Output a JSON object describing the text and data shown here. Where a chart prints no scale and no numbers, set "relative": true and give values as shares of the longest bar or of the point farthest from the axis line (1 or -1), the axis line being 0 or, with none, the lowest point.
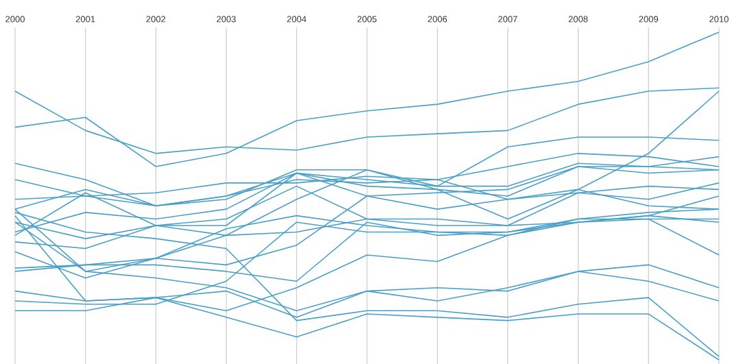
{
  "chart_data": {
    "type": "line",
    "relative": true,
    "grid": "x",
    "color": "#4a9fc8",
    "categories": [
      "2000",
      "2001",
      "2002",
      "2003",
      "2004",
      "2005",
      "2006",
      "2007",
      "2008",
      "2009",
      "2010"
    ],
    "series": [
      {
        "values": [
          0.71,
          0.74,
          0.59,
          0.63,
          0.73,
          0.76,
          0.78,
          0.82,
          0.85,
          0.91,
          1
        ]
      },
      {
        "values": [
          0.82,
          0.7,
          0.63,
          0.65,
          0.64,
          0.68,
          0.69,
          0.7,
          0.78,
          0.82,
          0.83
        ]
      },
      {
        "values": [
          0.6,
          0.55,
          0.47,
          0.5,
          0.57,
          0.55,
          0.53,
          0.65,
          0.68,
          0.68,
          0.67
        ]
      },
      {
        "values": [
          0.55,
          0.5,
          0.47,
          0.5,
          0.55,
          0.54,
          0.55,
          0.59,
          0.63,
          0.62,
          0.59
        ]
      },
      {
        "values": [
          0.49,
          0.5,
          0.51,
          0.54,
          0.54,
          0.56,
          0.55,
          0.49,
          0.51,
          0.49,
          0.54
        ]
      },
      {
        "values": [
          0.46,
          0.52,
          0.47,
          0.49,
          0.58,
          0.58,
          0.53,
          0.53,
          0.6,
          0.59,
          0.58
        ]
      },
      {
        "values": [
          0.42,
          0.27,
          0.31,
          0.38,
          0.49,
          0.58,
          0.52,
          0.43,
          0.52,
          0.63,
          0.82
        ]
      },
      {
        "values": [
          0.39,
          0.45,
          0.43,
          0.46,
          0.57,
          0.5,
          0.51,
          0.52,
          0.59,
          0.59,
          0.62
        ]
      },
      {
        "values": [
          0.38,
          0.51,
          0.41,
          0.41,
          0.57,
          0.53,
          0.52,
          0.5,
          0.59,
          0.57,
          0.58
        ]
      },
      {
        "values": [
          0.36,
          0.34,
          0.41,
          0.43,
          0.53,
          0.43,
          0.41,
          0.41,
          0.51,
          0.53,
          0.52
        ]
      },
      {
        "values": [
          0.33,
          0.25,
          0.31,
          0.4,
          0.44,
          0.41,
          0.39,
          0.38,
          0.42,
          0.44,
          0.5
        ]
      },
      {
        "values": [
          0.28,
          0.29,
          0.31,
          0.29,
          0.35,
          0.5,
          0.46,
          0.49,
          0.52,
          0.47,
          0.46
        ]
      },
      {
        "values": [
          0.27,
          0.29,
          0.29,
          0.27,
          0.24,
          0.42,
          0.38,
          0.39,
          0.43,
          0.45,
          0.46
        ]
      },
      {
        "values": [
          0.21,
          0.18,
          0.19,
          0.15,
          0.22,
          0.32,
          0.3,
          0.38,
          0.43,
          0.43,
          0.43
        ]
      },
      {
        "values": [
          0.18,
          0.17,
          0.17,
          0.24,
          0.42,
          0.39,
          0.39,
          0.39,
          0.42,
          0.44,
          0.42
        ]
      },
      {
        "values": [
          0.15,
          0.15,
          0.19,
          0.21,
          0.13,
          0.21,
          0.18,
          0.22,
          0.27,
          0.29,
          0.22
        ]
      },
      {
        "values": [
          0.46,
          0.27,
          0.25,
          0.22,
          0.15,
          0.21,
          0.22,
          0.21,
          0.27,
          0.24,
          0.18
        ]
      },
      {
        "values": [
          0.45,
          0.39,
          0.37,
          0.34,
          0.12,
          0.15,
          0.15,
          0.13,
          0.17,
          0.19,
          0.01
        ]
      },
      {
        "values": [
          0.44,
          0.18,
          0.19,
          0.13,
          0.07,
          0.14,
          0.13,
          0.12,
          0.14,
          0.14,
          0
        ]
      },
      {
        "values": [
          0.42,
          0.37,
          0.41,
          0.38,
          0.39,
          0.43,
          0.43,
          0.41,
          0.42,
          0.43,
          0.32
        ]
      }
    ]
  }
}
